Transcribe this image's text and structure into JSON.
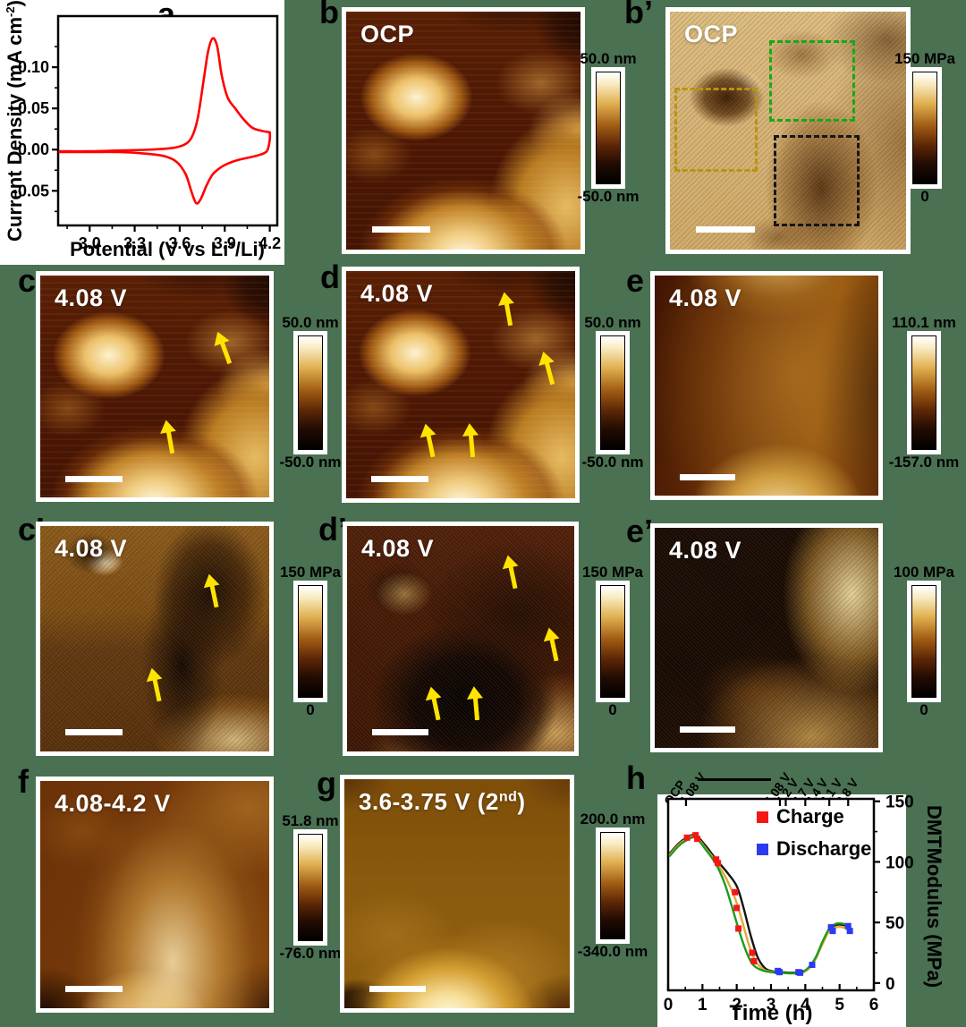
{
  "figure": {
    "background": "#4a7152",
    "panel_labels": {
      "a": "a",
      "b": "b",
      "b2": "b’",
      "c": "c",
      "d": "d",
      "e": "e",
      "c2": "c’",
      "d2": "d’",
      "e2": "e’",
      "f": "f",
      "g": "g",
      "h": "h"
    }
  },
  "panel_a": {
    "ylabel_pre": "Current Density (mA cm",
    "ylabel_sup": "-2",
    "ylabel_post": ")",
    "xlabel_pre": "Potential (V vs Li",
    "xlabel_sup": "+",
    "xlabel_post": "/Li)",
    "chart_data": {
      "type": "line",
      "title": "",
      "xlabel": "Potential (V vs Li+/Li)",
      "ylabel": "Current Density (mA cm-2)",
      "xlim": [
        2.79,
        4.25
      ],
      "ylim": [
        -0.092,
        0.162
      ],
      "x_ticks": [
        3.0,
        3.3,
        3.6,
        3.9,
        4.2
      ],
      "x_tick_labels": [
        "3.0",
        "3.3",
        "3.6",
        "3.9",
        "4.2"
      ],
      "y_ticks": [
        -0.05,
        0.0,
        0.05,
        0.1
      ],
      "y_tick_labels": [
        "-0.05",
        "0.00",
        "0.05",
        "0.10"
      ],
      "grid": false,
      "series": [
        {
          "name": "CV anodic sweep",
          "color": "#ff0000",
          "x": [
            2.8,
            3.0,
            3.2,
            3.4,
            3.55,
            3.63,
            3.68,
            3.72,
            3.76,
            3.79,
            3.82,
            3.85,
            3.88,
            3.92,
            3.97,
            4.02,
            4.08,
            4.14,
            4.2
          ],
          "y": [
            -0.002,
            -0.002,
            -0.001,
            0.0,
            0.002,
            0.006,
            0.015,
            0.038,
            0.085,
            0.12,
            0.135,
            0.125,
            0.09,
            0.063,
            0.05,
            0.038,
            0.027,
            0.023,
            0.021
          ]
        },
        {
          "name": "CV cathodic sweep",
          "color": "#ff0000",
          "x": [
            4.2,
            4.2,
            4.18,
            4.12,
            4.05,
            3.98,
            3.92,
            3.87,
            3.82,
            3.78,
            3.74,
            3.71,
            3.68,
            3.64,
            3.58,
            3.5,
            3.38,
            3.2,
            3.0,
            2.8
          ],
          "y": [
            0.021,
            0.012,
            -0.002,
            -0.007,
            -0.01,
            -0.013,
            -0.017,
            -0.022,
            -0.03,
            -0.043,
            -0.06,
            -0.065,
            -0.052,
            -0.03,
            -0.015,
            -0.008,
            -0.005,
            -0.003,
            -0.003,
            -0.003
          ]
        }
      ]
    }
  },
  "afm": {
    "b": {
      "tag": "OCP",
      "cb_top": "50.0 nm",
      "cb_bottom": "-50.0 nm"
    },
    "b2": {
      "tag": "OCP",
      "cb_top": "150 MPa",
      "cb_bottom": "0",
      "roi_boxes": [
        {
          "name": "green",
          "color": "#18a818"
        },
        {
          "name": "dark-yellow",
          "color": "#b89410"
        },
        {
          "name": "black",
          "color": "#161616"
        }
      ]
    },
    "c": {
      "tag": "4.08 V",
      "cb_top": "50.0 nm",
      "cb_bottom": "-50.0 nm"
    },
    "d": {
      "tag": "4.08 V",
      "cb_top": "50.0 nm",
      "cb_bottom": "-50.0 nm"
    },
    "e": {
      "tag": "4.08 V",
      "cb_top": "110.1 nm",
      "cb_bottom": "-157.0 nm"
    },
    "c2": {
      "tag": "4.08 V",
      "cb_top": "150 MPa",
      "cb_bottom": "0"
    },
    "d2": {
      "tag": "4.08 V",
      "cb_top": "150 MPa",
      "cb_bottom": "0"
    },
    "e2": {
      "tag": "4.08 V",
      "cb_top": "100 MPa",
      "cb_bottom": "0"
    },
    "f": {
      "tag": "4.08-4.2 V",
      "cb_top": "51.8 nm",
      "cb_bottom": "-76.0 nm"
    },
    "g": {
      "tag_pre": "3.6-3.75 V (2",
      "tag_sup": "nd",
      "tag_post": ")",
      "cb_top": "200.0 nm",
      "cb_bottom": "-340.0 nm"
    }
  },
  "panel_h": {
    "xlabel": "Time (h)",
    "ylabel": "DMTModulus (MPa)",
    "legend": {
      "charge": "Charge",
      "discharge": "Discharge"
    },
    "chart_data": {
      "type": "line",
      "xlabel": "Time (h)",
      "ylabel": "DMTModulus (MPa)",
      "xlim": [
        0,
        6
      ],
      "ylim": [
        -6,
        152
      ],
      "x_ticks": [
        0,
        1,
        2,
        3,
        4,
        5,
        6
      ],
      "x_tick_labels": [
        "0",
        "1",
        "2",
        "3",
        "4",
        "5",
        "6"
      ],
      "y_ticks": [
        0,
        50,
        100,
        150
      ],
      "y_tick_labels": [
        "0",
        "50",
        "100",
        "150"
      ],
      "y_axis_side": "right",
      "grid": false,
      "legend_position": "top-inside",
      "legend": [
        {
          "label": "Charge",
          "color": "#f71616",
          "marker": "square"
        },
        {
          "label": "Discharge",
          "color": "#2b3bf0",
          "marker": "square"
        }
      ],
      "top_axis": {
        "tick_positions": [
          0.52,
          3.26,
          3.43,
          4.0,
          4.7,
          5.25
        ],
        "labels": [
          {
            "text": "OCP",
            "x": 0.12
          },
          {
            "text": "4.08 V",
            "x": 0.58
          },
          {
            "text": "4.08 V",
            "x": 3.05
          },
          {
            "text": "4.2 V",
            "x": 3.38
          },
          {
            "text": "3.7 V",
            "x": 3.85
          },
          {
            "text": "3.4 V",
            "x": 4.25
          },
          {
            "text": "3.1 V",
            "x": 4.68
          },
          {
            "text": "2.8 V",
            "x": 5.15
          }
        ]
      },
      "series": [
        {
          "name": "ROI black box",
          "color": "#141414",
          "x": [
            0.05,
            0.3,
            0.55,
            0.8,
            1.1,
            1.4,
            1.7,
            2.0,
            2.2,
            2.4,
            2.6,
            2.8,
            3.0,
            3.3,
            3.6,
            3.9,
            4.1,
            4.3,
            4.5,
            4.7,
            4.9,
            5.1,
            5.3
          ],
          "y": [
            107,
            115,
            120,
            122,
            113,
            102,
            92,
            80,
            62,
            40,
            22,
            13,
            10,
            9,
            8.5,
            9,
            12,
            20,
            33,
            44,
            48,
            48,
            46
          ]
        },
        {
          "name": "ROI dark-yellow box",
          "color": "#e5a838",
          "x": [
            0.05,
            0.3,
            0.55,
            0.8,
            1.1,
            1.4,
            1.7,
            1.95,
            2.15,
            2.35,
            2.55,
            2.8,
            3.0,
            3.3,
            3.6,
            3.9,
            4.1,
            4.3,
            4.5,
            4.7,
            4.9,
            5.1,
            5.3
          ],
          "y": [
            106,
            114,
            119,
            121,
            111,
            100,
            86,
            70,
            52,
            32,
            18,
            11,
            9.5,
            8.5,
            8,
            8.5,
            12,
            20,
            32,
            43,
            46,
            46,
            43
          ]
        },
        {
          "name": "ROI green box",
          "color": "#1d9b1d",
          "x": [
            0.05,
            0.3,
            0.55,
            0.8,
            1.1,
            1.4,
            1.65,
            1.85,
            2.05,
            2.25,
            2.45,
            2.7,
            3.0,
            3.3,
            3.6,
            3.9,
            4.1,
            4.3,
            4.5,
            4.7,
            4.9,
            5.1,
            5.3
          ],
          "y": [
            105,
            113,
            118,
            120,
            110,
            98,
            82,
            64,
            45,
            28,
            16,
            11,
            9,
            8.5,
            8,
            9,
            13,
            21,
            34,
            45,
            49,
            49,
            47
          ]
        }
      ],
      "charge_points": {
        "color": "#f71616",
        "x": [
          0.55,
          0.8,
          0.85,
          1.4,
          1.45,
          1.95,
          2.0,
          2.05,
          2.45,
          2.5
        ],
        "y": [
          120,
          122,
          119,
          102,
          99,
          75,
          62,
          45,
          25,
          18
        ]
      },
      "discharge_points": {
        "color": "#2b3bf0",
        "x": [
          3.2,
          3.25,
          3.8,
          3.85,
          4.2,
          4.75,
          4.8,
          5.25,
          5.3
        ],
        "y": [
          10,
          9,
          9,
          8.5,
          15,
          46,
          43,
          47,
          43
        ]
      }
    }
  }
}
